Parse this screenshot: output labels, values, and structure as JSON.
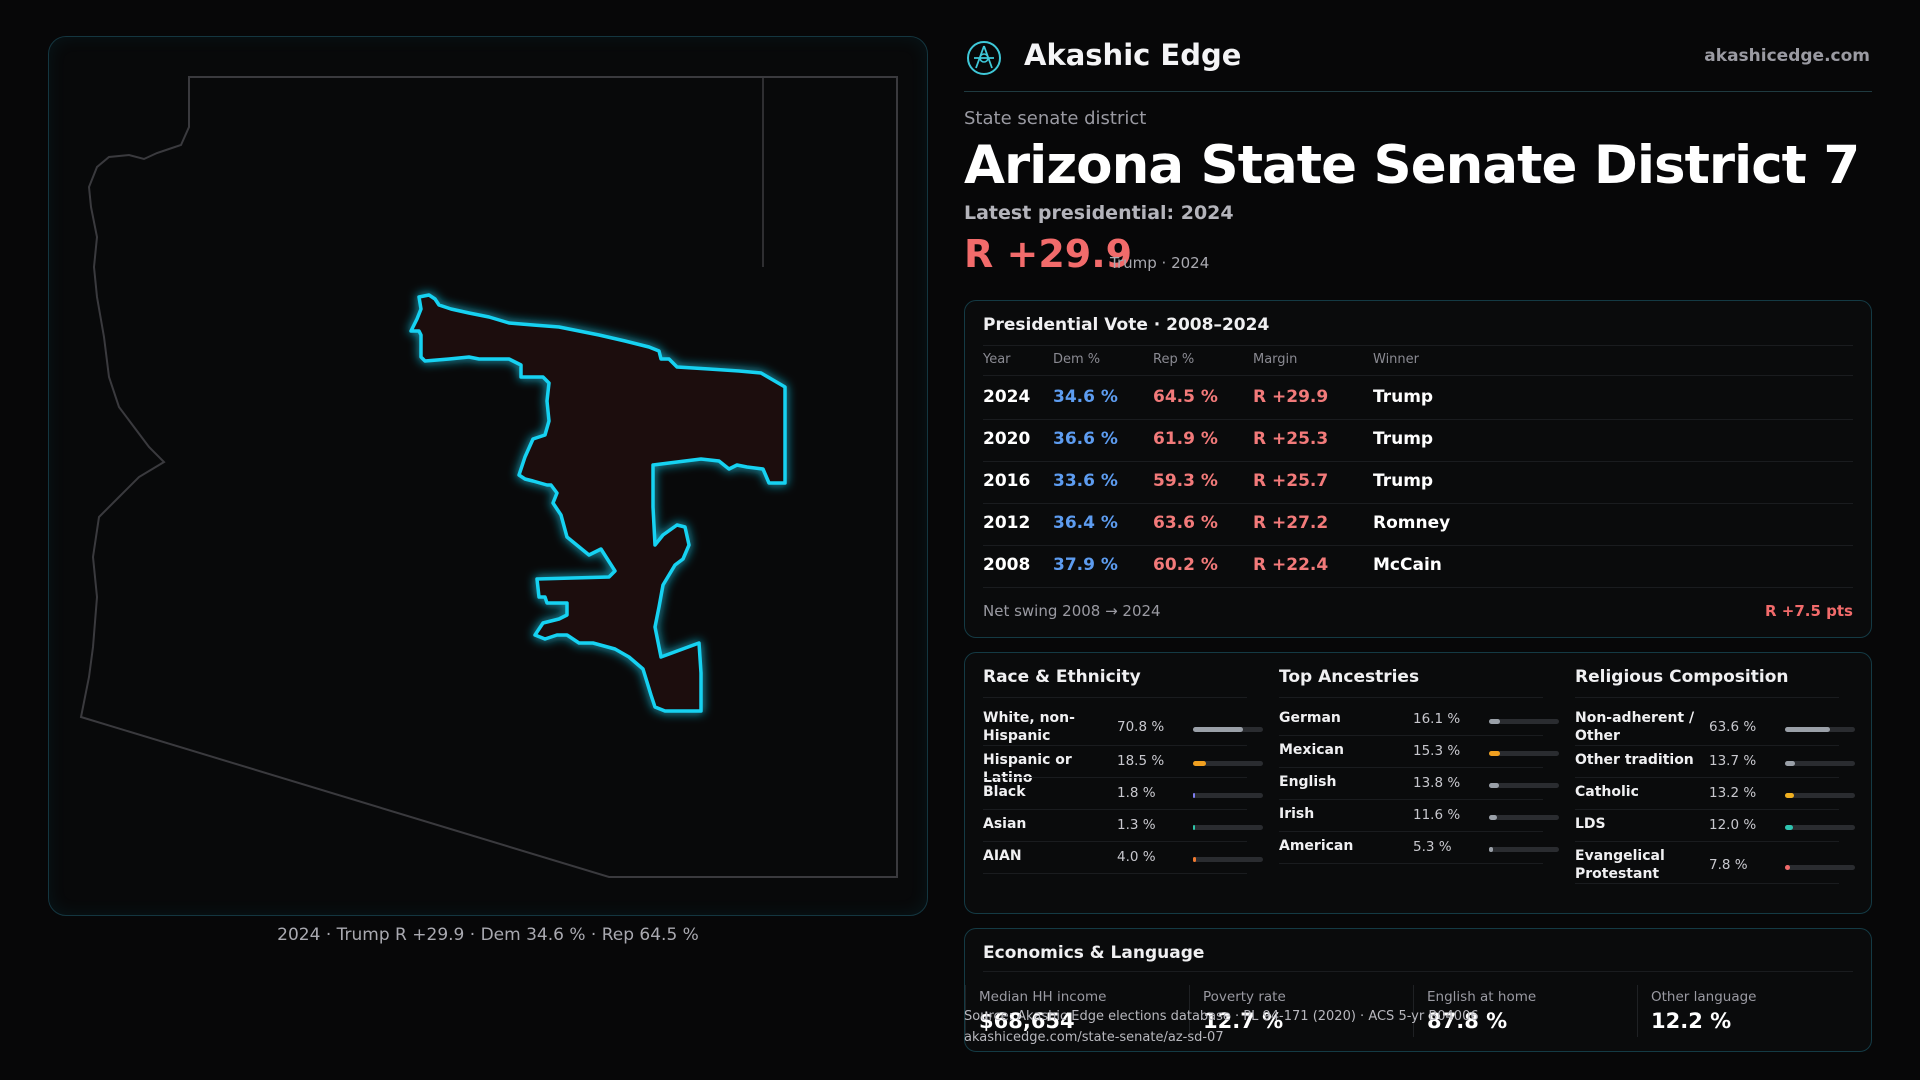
{
  "map": {
    "caption": "2024 · Trump R +29.9 · Dem 34.6 % · Rep 64.5 %",
    "colors": {
      "state_outline": "#3a3a3e",
      "district_glow": "#19d2f2",
      "district_fill": "#1a0e0f"
    }
  },
  "brand": {
    "name": "Akashic Edge",
    "url": "akashicedge.com",
    "logo_icon": "atom-compass-icon"
  },
  "header": {
    "eyebrow": "State senate district",
    "title": "Arizona State Senate District 7",
    "latest": "Latest presidential: 2024",
    "margin": "R +29.9",
    "margin_sub": "Trump · 2024"
  },
  "presidential": {
    "title": "Presidential Vote · 2008–2024",
    "columns": [
      "Year",
      "Dem %",
      "Rep %",
      "Margin",
      "Winner"
    ],
    "rows": [
      {
        "year": "2024",
        "dem": "34.6 %",
        "rep": "64.5 %",
        "margin": "R +29.9",
        "winner": "Trump"
      },
      {
        "year": "2020",
        "dem": "36.6 %",
        "rep": "61.9 %",
        "margin": "R +25.3",
        "winner": "Trump"
      },
      {
        "year": "2016",
        "dem": "33.6 %",
        "rep": "59.3 %",
        "margin": "R +25.7",
        "winner": "Trump"
      },
      {
        "year": "2012",
        "dem": "36.4 %",
        "rep": "63.6 %",
        "margin": "R +27.2",
        "winner": "Romney"
      },
      {
        "year": "2008",
        "dem": "37.9 %",
        "rep": "60.2 %",
        "margin": "R +22.4",
        "winner": "McCain"
      }
    ],
    "swing_label": "Net swing 2008 → 2024",
    "swing_value": "R +7.5 pts"
  },
  "race": {
    "title": "Race & Ethnicity",
    "items": [
      {
        "label": "White, non-Hispanic",
        "value": "70.8 %",
        "pct": 70.8,
        "color": "#9aa0a8",
        "two_line": true
      },
      {
        "label": "Hispanic or Latino",
        "value": "18.5 %",
        "pct": 18.5,
        "color": "#f0a020"
      },
      {
        "label": "Black",
        "value": "1.8 %",
        "pct": 1.8,
        "color": "#7d7df0"
      },
      {
        "label": "Asian",
        "value": "1.3 %",
        "pct": 1.3,
        "color": "#2ec4a8"
      },
      {
        "label": "AIAN",
        "value": "4.0 %",
        "pct": 4.0,
        "color": "#f07a30"
      }
    ]
  },
  "ancestry": {
    "title": "Top Ancestries",
    "items": [
      {
        "label": "German",
        "value": "16.1 %",
        "pct": 16.1,
        "color": "#9aa0a8"
      },
      {
        "label": "Mexican",
        "value": "15.3 %",
        "pct": 15.3,
        "color": "#f0a020"
      },
      {
        "label": "English",
        "value": "13.8 %",
        "pct": 13.8,
        "color": "#9aa0a8"
      },
      {
        "label": "Irish",
        "value": "11.6 %",
        "pct": 11.6,
        "color": "#9aa0a8"
      },
      {
        "label": "American",
        "value": "5.3 %",
        "pct": 5.3,
        "color": "#9aa0a8"
      }
    ]
  },
  "religion": {
    "title": "Religious Composition",
    "items": [
      {
        "label": "Non-adherent / Other",
        "value": "63.6 %",
        "pct": 63.6,
        "color": "#9aa0a8",
        "two_line": true
      },
      {
        "label": "Other tradition",
        "value": "13.7 %",
        "pct": 13.7,
        "color": "#9aa0a8"
      },
      {
        "label": "Catholic",
        "value": "13.2 %",
        "pct": 13.2,
        "color": "#f0b020"
      },
      {
        "label": "LDS",
        "value": "12.0 %",
        "pct": 12.0,
        "color": "#2ec4b0"
      },
      {
        "label": "Evangelical Protestant",
        "value": "7.8 %",
        "pct": 7.8,
        "color": "#f06a6a",
        "two_line": true
      }
    ]
  },
  "economics": {
    "title": "Economics & Language",
    "metrics": [
      {
        "label": "Median HH income",
        "value": "$68,654"
      },
      {
        "label": "Poverty rate",
        "value": "12.7 %"
      },
      {
        "label": "English at home",
        "value": "87.8 %"
      },
      {
        "label": "Other language",
        "value": "12.2 %"
      }
    ]
  },
  "source": {
    "line1": "Source: Akashic Edge elections database · PL 94-171 (2020) · ACS 5-yr B04006",
    "line2": "akashicedge.com/state-senate/az-sd-07"
  }
}
